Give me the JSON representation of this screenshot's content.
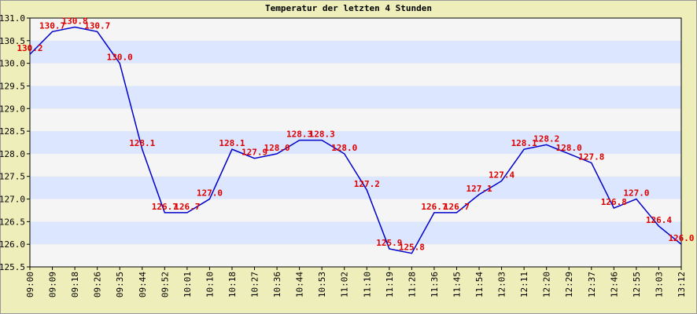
{
  "chart_data": {
    "type": "line",
    "title": "Temperatur der letzten 4 Stunden",
    "categories": [
      "09:00",
      "09:09",
      "09:18",
      "09:26",
      "09:35",
      "09:44",
      "09:52",
      "10:01",
      "10:10",
      "10:18",
      "10:27",
      "10:36",
      "10:44",
      "10:53",
      "11:02",
      "11:10",
      "11:19",
      "11:28",
      "11:36",
      "11:45",
      "11:54",
      "12:03",
      "12:11",
      "12:20",
      "12:29",
      "12:37",
      "12:46",
      "12:55",
      "13:03",
      "13:12"
    ],
    "series": [
      {
        "color": "#0000cc",
        "label_color": "#dd0000",
        "values": [
          130.2,
          130.7,
          130.8,
          130.7,
          130.0,
          128.1,
          126.7,
          126.7,
          127.0,
          128.1,
          127.9,
          128.0,
          128.3,
          128.3,
          128.0,
          127.2,
          125.9,
          125.8,
          126.7,
          126.7,
          127.1,
          127.4,
          128.1,
          128.2,
          128.0,
          127.8,
          126.8,
          127.0,
          126.4,
          126.0
        ],
        "value_labels": [
          "130.2",
          "130.7",
          "130.8",
          "130.7",
          "130.0",
          "128.1",
          "126.7",
          "126.7",
          "127.0",
          "128.1",
          "127.9",
          "128.0",
          "128.3",
          "128.3",
          "128.0",
          "127.2",
          "125.9",
          "125.8",
          "126.7",
          "126.7",
          "127.1",
          "127.4",
          "128.1",
          "128.2",
          "128.0",
          "127.8",
          "126.8",
          "127.0",
          "126.4",
          "126.0"
        ]
      }
    ],
    "ylim": [
      125.5,
      131.0
    ],
    "yticks": [
      {
        "value": 125.5,
        "label": "125.5"
      },
      {
        "value": 126.0,
        "label": "126.0"
      },
      {
        "value": 126.5,
        "label": "126.5"
      },
      {
        "value": 127.0,
        "label": "127.0"
      },
      {
        "value": 127.5,
        "label": "127.5"
      },
      {
        "value": 128.0,
        "label": "128.0"
      },
      {
        "value": 128.5,
        "label": "128.5"
      },
      {
        "value": 129.0,
        "label": "129.0"
      },
      {
        "value": 129.5,
        "label": "129.5"
      },
      {
        "value": 130.0,
        "label": "130.0"
      },
      {
        "value": 130.5,
        "label": "130.5"
      },
      {
        "value": 131.0,
        "label": "131.0"
      }
    ],
    "band_colors": [
      "#f5f5f5",
      "#dde6ff"
    ]
  }
}
